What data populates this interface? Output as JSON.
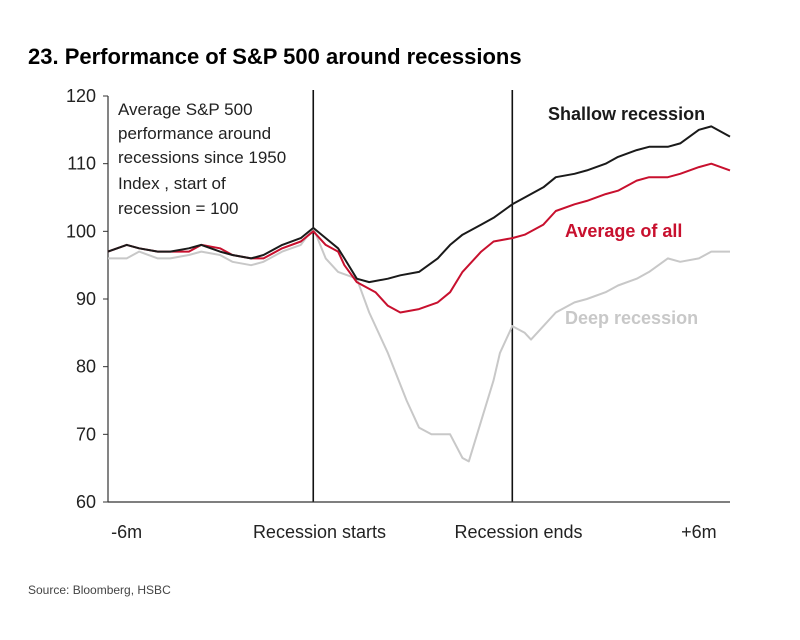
{
  "title": "23. Performance of S&P 500 around recessions",
  "source": "Source: Bloomberg, HSBC",
  "note_lines": [
    "Average S&P 500",
    "performance around",
    "recessions since 1950",
    "Index , start of",
    "recession = 100"
  ],
  "colors": {
    "shallow": "#1a1a1a",
    "average": "#c8102e",
    "deep": "#c8c8c8",
    "axis": "#333333"
  },
  "chart_data": {
    "type": "line",
    "title": "23. Performance of S&P 500 around recessions",
    "xlabel": "",
    "ylabel": "Index, start of recession = 100",
    "ylim": [
      60,
      120
    ],
    "xlim": [
      0,
      100
    ],
    "yticks": [
      120,
      110,
      100,
      90,
      80,
      70,
      60
    ],
    "xticks": [
      {
        "label": "-6m",
        "x": 3
      },
      {
        "label": "Recession starts",
        "x": 34
      },
      {
        "label": "Recession ends",
        "x": 66
      },
      {
        "label": "+6m",
        "x": 95
      }
    ],
    "vlines": [
      33,
      65
    ],
    "series": [
      {
        "name": "Shallow recession",
        "label": "Shallow recession",
        "color": "#1a1a1a",
        "x": [
          0,
          3,
          5,
          8,
          10,
          13,
          15,
          18,
          20,
          23,
          25,
          28,
          31,
          33,
          35,
          37,
          38,
          40,
          42,
          45,
          47,
          50,
          53,
          55,
          57,
          60,
          62,
          65,
          67,
          70,
          72,
          75,
          77,
          80,
          82,
          85,
          87,
          90,
          92,
          95,
          97,
          100
        ],
        "y": [
          97,
          98,
          97.5,
          97,
          97,
          97.5,
          98,
          97,
          96.5,
          96,
          96.5,
          98,
          99,
          100.5,
          99,
          97.5,
          96,
          93,
          92.5,
          93,
          93.5,
          94,
          96,
          98,
          99.5,
          101,
          102,
          104,
          105,
          106.5,
          108,
          108.5,
          109,
          110,
          111,
          112,
          112.5,
          112.5,
          113,
          115,
          115.5,
          114
        ]
      },
      {
        "name": "Average of all",
        "label": "Average of all",
        "color": "#c8102e",
        "x": [
          0,
          3,
          5,
          8,
          10,
          13,
          15,
          18,
          20,
          23,
          25,
          28,
          31,
          33,
          35,
          37,
          38,
          40,
          43,
          45,
          47,
          50,
          53,
          55,
          57,
          60,
          62,
          65,
          67,
          70,
          72,
          75,
          77,
          80,
          82,
          85,
          87,
          90,
          92,
          95,
          97,
          100
        ],
        "y": [
          97,
          98,
          97.5,
          97,
          97,
          97,
          98,
          97.5,
          96.5,
          96,
          96,
          97.5,
          98.5,
          100,
          98,
          97,
          95,
          92.5,
          91,
          89,
          88,
          88.5,
          89.5,
          91,
          94,
          97,
          98.5,
          99,
          99.5,
          101,
          103,
          104,
          104.5,
          105.5,
          106,
          107.5,
          108,
          108,
          108.5,
          109.5,
          110,
          109
        ]
      },
      {
        "name": "Deep recession",
        "label": "Deep recession",
        "color": "#c8c8c8",
        "x": [
          0,
          3,
          5,
          8,
          10,
          13,
          15,
          18,
          20,
          23,
          25,
          28,
          31,
          33,
          35,
          37,
          40,
          42,
          45,
          48,
          50,
          52,
          55,
          57,
          58,
          60,
          62,
          63,
          65,
          67,
          68,
          70,
          72,
          75,
          77,
          80,
          82,
          85,
          87,
          90,
          92,
          95,
          97,
          100
        ],
        "y": [
          96,
          96,
          97,
          96,
          96,
          96.5,
          97,
          96.5,
          95.5,
          95,
          95.5,
          97,
          98,
          100.5,
          96,
          94,
          93,
          88,
          82,
          75,
          71,
          70,
          70,
          66.5,
          66,
          72,
          78,
          82,
          86,
          85,
          84,
          86,
          88,
          89.5,
          90,
          91,
          92,
          93,
          94,
          96,
          95.5,
          96,
          97,
          97
        ]
      }
    ]
  }
}
